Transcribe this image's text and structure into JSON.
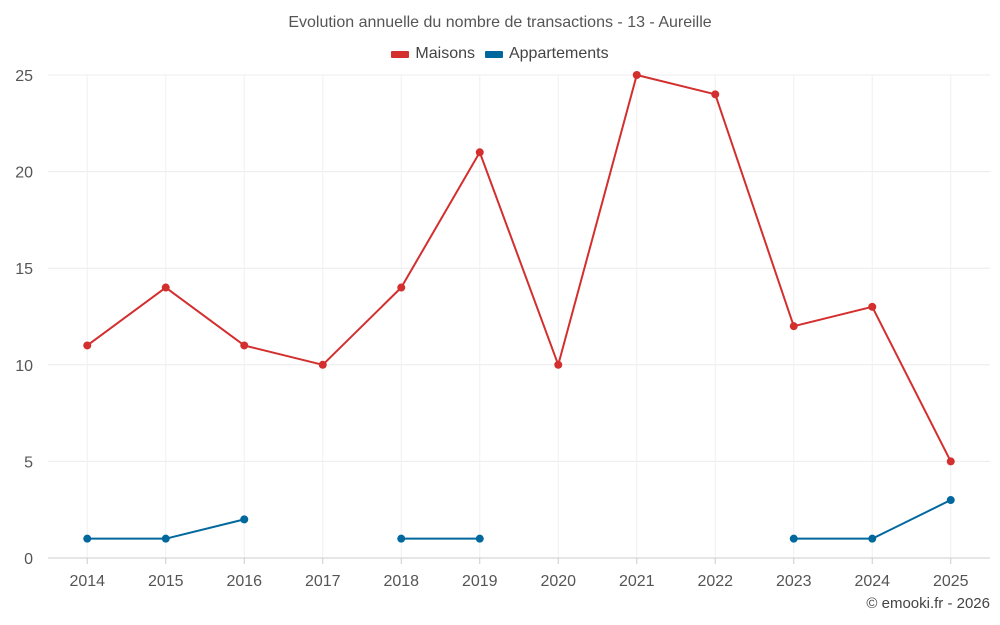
{
  "chart_data": {
    "type": "line",
    "title": "Evolution annuelle du nombre de transactions - 13 - Aureille",
    "xlabel": "",
    "ylabel": "",
    "categories": [
      "2014",
      "2015",
      "2016",
      "2017",
      "2018",
      "2019",
      "2020",
      "2021",
      "2022",
      "2023",
      "2024",
      "2025"
    ],
    "ylim": [
      0,
      25
    ],
    "yticks": [
      0,
      5,
      10,
      15,
      20,
      25
    ],
    "grid": true,
    "legend_position": "top-center",
    "series": [
      {
        "name": "Maisons",
        "color": "#d32f2f",
        "values": [
          11,
          14,
          11,
          10,
          14,
          21,
          10,
          25,
          24,
          12,
          13,
          5
        ]
      },
      {
        "name": "Appartements",
        "color": "#01689e",
        "values": [
          1,
          1,
          2,
          null,
          1,
          1,
          null,
          null,
          null,
          1,
          1,
          3
        ]
      }
    ]
  },
  "credit": "© emooki.fr - 2026"
}
